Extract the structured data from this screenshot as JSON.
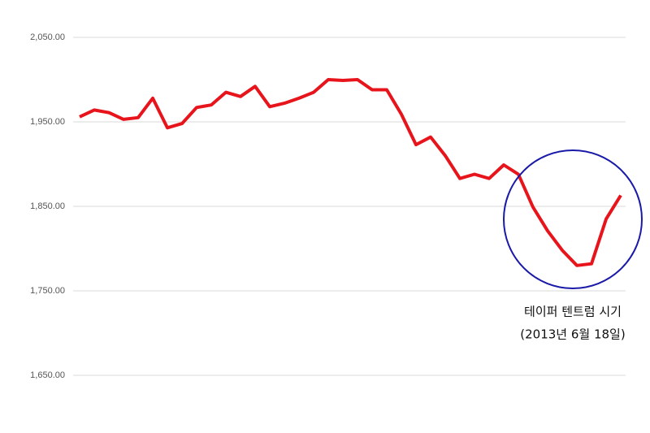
{
  "chart_data": {
    "type": "line",
    "categories": [
      null,
      null,
      null,
      null,
      null,
      null,
      null,
      null,
      null,
      null,
      null,
      null,
      null,
      null,
      null,
      null,
      null,
      null,
      null,
      null,
      null,
      null,
      null,
      null,
      null,
      null,
      null,
      null,
      null,
      null,
      null,
      null,
      null,
      null,
      null,
      null,
      null,
      null
    ],
    "series": [
      {
        "color": "#e8141b",
        "values": [
          1956,
          1964,
          1961,
          1953,
          1955,
          1978,
          1943,
          1948,
          1967,
          1970,
          1985,
          1980,
          1992,
          1968,
          1972,
          1978,
          1985,
          2000,
          1999,
          2000,
          1988,
          1988,
          1959,
          1923,
          1932,
          1910,
          1883,
          1888,
          1883,
          1899,
          1888,
          1849,
          1821,
          1798,
          1780,
          1782,
          1835,
          1863
        ]
      }
    ],
    "ylim": [
      1650,
      2050
    ],
    "yticks": [
      {
        "value": 1650,
        "label": "1,650.00"
      },
      {
        "value": 1750,
        "label": "1,750.00"
      },
      {
        "value": 1850,
        "label": "1,850.00"
      },
      {
        "value": 1950,
        "label": "1,950.00"
      },
      {
        "value": 2050,
        "label": "2,050.00"
      }
    ],
    "grid": true,
    "annotations": [
      "테이퍼 텐트럼 시기",
      "(2013년 6월 18일)"
    ]
  }
}
